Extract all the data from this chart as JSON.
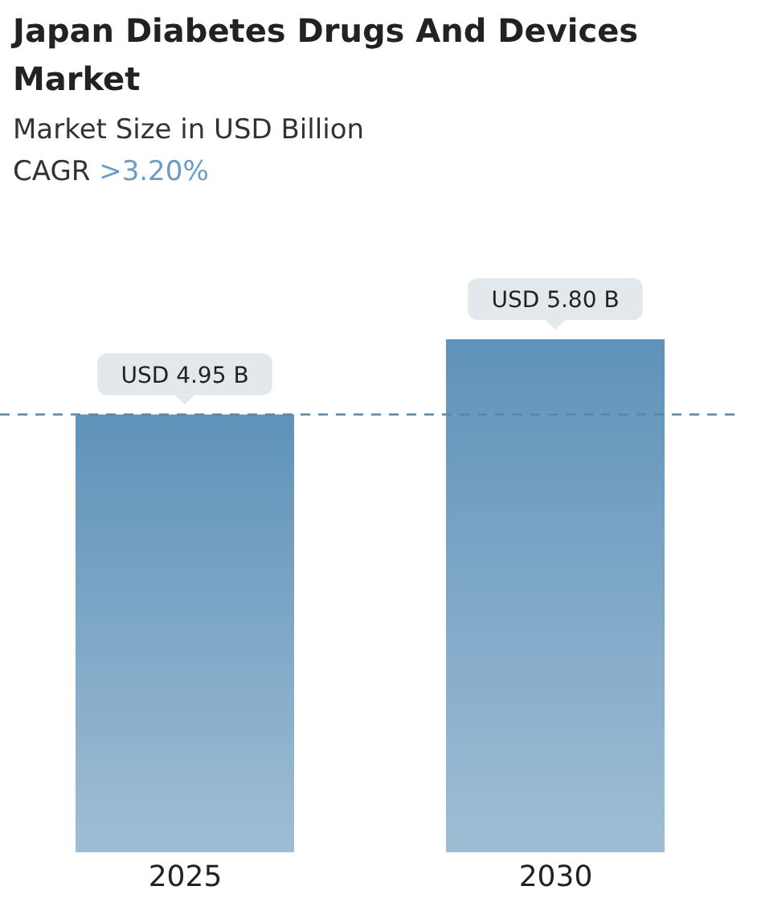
{
  "chart_data": {
    "type": "bar",
    "title": "Japan Diabetes Drugs And Devices Market",
    "subtitle": "Market Size in USD Billion",
    "annotations": [
      "CAGR",
      ">3.20%"
    ],
    "categories": [
      "2025",
      "2030"
    ],
    "values": [
      4.95,
      5.8
    ],
    "value_labels": [
      "USD 4.95 B",
      "USD 5.80 B"
    ],
    "color": "#5f92b9",
    "ref_lines": [
      {
        "axis": "y",
        "value": 4.95,
        "color": "#5b86a8",
        "line_style": "dashed"
      }
    ],
    "grid": false,
    "legend": false
  }
}
